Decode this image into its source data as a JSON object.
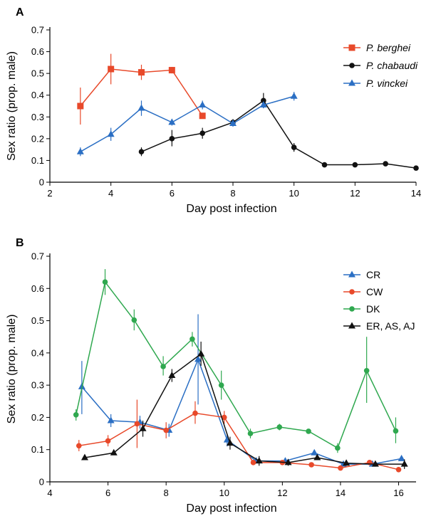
{
  "chart_data": [
    {
      "type": "line",
      "panel_label": "A",
      "xlabel": "Day post infection",
      "ylabel": "Sex ratio (prop. male)",
      "xlim": [
        2,
        14
      ],
      "ylim": [
        0,
        0.7
      ],
      "xticks": [
        2,
        4,
        6,
        8,
        10,
        12,
        14
      ],
      "yticks": [
        0,
        0.1,
        0.2,
        0.3,
        0.4,
        0.5,
        0.6,
        0.7
      ],
      "ytick_labels": [
        "0",
        "0.1",
        "0.2",
        "0.3",
        "0.4",
        "0.5",
        "0.6",
        "0.7"
      ],
      "grid": false,
      "legend_placement": "top-right",
      "series": [
        {
          "name": "P. berghei",
          "color": "#e8492a",
          "marker": "square",
          "points": [
            {
              "x": 3,
              "y": 0.35,
              "lo": 0.265,
              "hi": 0.435
            },
            {
              "x": 4,
              "y": 0.52,
              "lo": 0.45,
              "hi": 0.59
            },
            {
              "x": 5,
              "y": 0.505,
              "lo": 0.47,
              "hi": 0.54
            },
            {
              "x": 6,
              "y": 0.515,
              "lo": 0.5,
              "hi": 0.53
            },
            {
              "x": 7,
              "y": 0.305,
              "lo": 0.305,
              "hi": 0.305
            }
          ]
        },
        {
          "name": "P. chabaudi",
          "color": "#111111",
          "marker": "circle",
          "points": [
            {
              "x": 5,
              "y": 0.14,
              "lo": 0.12,
              "hi": 0.16
            },
            {
              "x": 6,
              "y": 0.2,
              "lo": 0.165,
              "hi": 0.24
            },
            {
              "x": 7,
              "y": 0.225,
              "lo": 0.2,
              "hi": 0.25
            },
            {
              "x": 8,
              "y": 0.275,
              "lo": 0.26,
              "hi": 0.29
            },
            {
              "x": 9,
              "y": 0.375,
              "lo": 0.34,
              "hi": 0.41
            },
            {
              "x": 10,
              "y": 0.16,
              "lo": 0.14,
              "hi": 0.18
            },
            {
              "x": 11,
              "y": 0.08,
              "lo": 0.08,
              "hi": 0.08
            },
            {
              "x": 12,
              "y": 0.08,
              "lo": 0.08,
              "hi": 0.08
            },
            {
              "x": 13,
              "y": 0.085,
              "lo": 0.085,
              "hi": 0.085
            },
            {
              "x": 14,
              "y": 0.065,
              "lo": 0.065,
              "hi": 0.065
            }
          ]
        },
        {
          "name": "P. vinckei",
          "color": "#2b6fc4",
          "marker": "triangle",
          "points": [
            {
              "x": 3,
              "y": 0.14,
              "lo": 0.12,
              "hi": 0.16
            },
            {
              "x": 4,
              "y": 0.22,
              "lo": 0.19,
              "hi": 0.25
            },
            {
              "x": 5,
              "y": 0.34,
              "lo": 0.305,
              "hi": 0.375
            },
            {
              "x": 6,
              "y": 0.275,
              "lo": 0.26,
              "hi": 0.29
            },
            {
              "x": 7,
              "y": 0.355,
              "lo": 0.335,
              "hi": 0.375
            },
            {
              "x": 8,
              "y": 0.27,
              "lo": 0.255,
              "hi": 0.285
            },
            {
              "x": 9,
              "y": 0.355,
              "lo": 0.34,
              "hi": 0.37
            },
            {
              "x": 10,
              "y": 0.395,
              "lo": 0.375,
              "hi": 0.415
            }
          ]
        }
      ]
    },
    {
      "type": "line",
      "panel_label": "B",
      "xlabel": "Day post infection",
      "ylabel": "Sex ratio (prop. male)",
      "xlim": [
        4,
        16.6
      ],
      "ylim": [
        0,
        0.7
      ],
      "xticks": [
        4,
        6,
        8,
        10,
        12,
        14,
        16
      ],
      "yticks": [
        0,
        0.1,
        0.2,
        0.3,
        0.4,
        0.5,
        0.6,
        0.7
      ],
      "ytick_labels": [
        "0",
        "0.1",
        "0.2",
        "0.3",
        "0.4",
        "0.5",
        "0.6",
        "0.7"
      ],
      "grid": false,
      "legend_placement": "top-right",
      "series": [
        {
          "name": "CR",
          "color": "#2b6fc4",
          "marker": "triangle",
          "points": [
            {
              "x": 5.1,
              "y": 0.295,
              "lo": 0.21,
              "hi": 0.375
            },
            {
              "x": 6.1,
              "y": 0.19,
              "lo": 0.17,
              "hi": 0.21
            },
            {
              "x": 7.1,
              "y": 0.185,
              "lo": 0.165,
              "hi": 0.205
            },
            {
              "x": 8.1,
              "y": 0.16,
              "lo": 0.14,
              "hi": 0.18
            },
            {
              "x": 9.1,
              "y": 0.38,
              "lo": 0.24,
              "hi": 0.52
            },
            {
              "x": 10.1,
              "y": 0.13,
              "lo": 0.11,
              "hi": 0.15
            },
            {
              "x": 11.1,
              "y": 0.065,
              "lo": 0.06,
              "hi": 0.07
            },
            {
              "x": 12.1,
              "y": 0.065,
              "lo": 0.06,
              "hi": 0.07
            },
            {
              "x": 13.1,
              "y": 0.09,
              "lo": 0.085,
              "hi": 0.095
            },
            {
              "x": 14.1,
              "y": 0.055,
              "lo": 0.05,
              "hi": 0.06
            },
            {
              "x": 15.1,
              "y": 0.055,
              "lo": 0.05,
              "hi": 0.06
            },
            {
              "x": 16.1,
              "y": 0.072,
              "lo": 0.067,
              "hi": 0.077
            }
          ]
        },
        {
          "name": "CW",
          "color": "#e8492a",
          "marker": "circle",
          "points": [
            {
              "x": 5,
              "y": 0.112,
              "lo": 0.095,
              "hi": 0.13
            },
            {
              "x": 6,
              "y": 0.127,
              "lo": 0.11,
              "hi": 0.145
            },
            {
              "x": 7,
              "y": 0.18,
              "lo": 0.105,
              "hi": 0.255
            },
            {
              "x": 8,
              "y": 0.16,
              "lo": 0.135,
              "hi": 0.185
            },
            {
              "x": 9,
              "y": 0.213,
              "lo": 0.18,
              "hi": 0.25
            },
            {
              "x": 10,
              "y": 0.2,
              "lo": 0.18,
              "hi": 0.22
            },
            {
              "x": 11,
              "y": 0.06,
              "lo": 0.055,
              "hi": 0.065
            },
            {
              "x": 12,
              "y": 0.06,
              "lo": 0.055,
              "hi": 0.065
            },
            {
              "x": 13,
              "y": 0.053,
              "lo": 0.048,
              "hi": 0.058
            },
            {
              "x": 14,
              "y": 0.043,
              "lo": 0.038,
              "hi": 0.048
            },
            {
              "x": 15,
              "y": 0.06,
              "lo": 0.055,
              "hi": 0.065
            },
            {
              "x": 16,
              "y": 0.038,
              "lo": 0.033,
              "hi": 0.043
            }
          ]
        },
        {
          "name": "DK",
          "color": "#2fa84f",
          "marker": "circle",
          "points": [
            {
              "x": 4.9,
              "y": 0.208,
              "lo": 0.19,
              "hi": 0.225
            },
            {
              "x": 5.9,
              "y": 0.62,
              "lo": 0.58,
              "hi": 0.66
            },
            {
              "x": 6.9,
              "y": 0.502,
              "lo": 0.47,
              "hi": 0.535
            },
            {
              "x": 7.9,
              "y": 0.358,
              "lo": 0.33,
              "hi": 0.39
            },
            {
              "x": 8.9,
              "y": 0.443,
              "lo": 0.42,
              "hi": 0.465
            },
            {
              "x": 9.9,
              "y": 0.3,
              "lo": 0.255,
              "hi": 0.345
            },
            {
              "x": 10.9,
              "y": 0.15,
              "lo": 0.135,
              "hi": 0.165
            },
            {
              "x": 11.9,
              "y": 0.17,
              "lo": 0.16,
              "hi": 0.18
            },
            {
              "x": 12.9,
              "y": 0.157,
              "lo": 0.15,
              "hi": 0.164
            },
            {
              "x": 13.9,
              "y": 0.105,
              "lo": 0.09,
              "hi": 0.12
            },
            {
              "x": 14.9,
              "y": 0.345,
              "lo": 0.245,
              "hi": 0.45
            },
            {
              "x": 15.9,
              "y": 0.158,
              "lo": 0.12,
              "hi": 0.2
            }
          ]
        },
        {
          "name": "ER, AS, AJ",
          "color": "#111111",
          "marker": "triangle",
          "points": [
            {
              "x": 5.2,
              "y": 0.075,
              "lo": 0.07,
              "hi": 0.08
            },
            {
              "x": 6.2,
              "y": 0.09,
              "lo": 0.085,
              "hi": 0.095
            },
            {
              "x": 7.2,
              "y": 0.165,
              "lo": 0.14,
              "hi": 0.19
            },
            {
              "x": 8.2,
              "y": 0.33,
              "lo": 0.31,
              "hi": 0.35
            },
            {
              "x": 9.2,
              "y": 0.397,
              "lo": 0.36,
              "hi": 0.435
            },
            {
              "x": 10.2,
              "y": 0.12,
              "lo": 0.1,
              "hi": 0.14
            },
            {
              "x": 11.2,
              "y": 0.065,
              "lo": 0.05,
              "hi": 0.08
            },
            {
              "x": 12.2,
              "y": 0.06,
              "lo": 0.05,
              "hi": 0.07
            },
            {
              "x": 13.2,
              "y": 0.075,
              "lo": 0.07,
              "hi": 0.08
            },
            {
              "x": 14.2,
              "y": 0.058,
              "lo": 0.053,
              "hi": 0.063
            },
            {
              "x": 15.2,
              "y": 0.055,
              "lo": 0.05,
              "hi": 0.06
            },
            {
              "x": 16.2,
              "y": 0.055,
              "lo": 0.04,
              "hi": 0.07
            }
          ]
        }
      ]
    }
  ]
}
